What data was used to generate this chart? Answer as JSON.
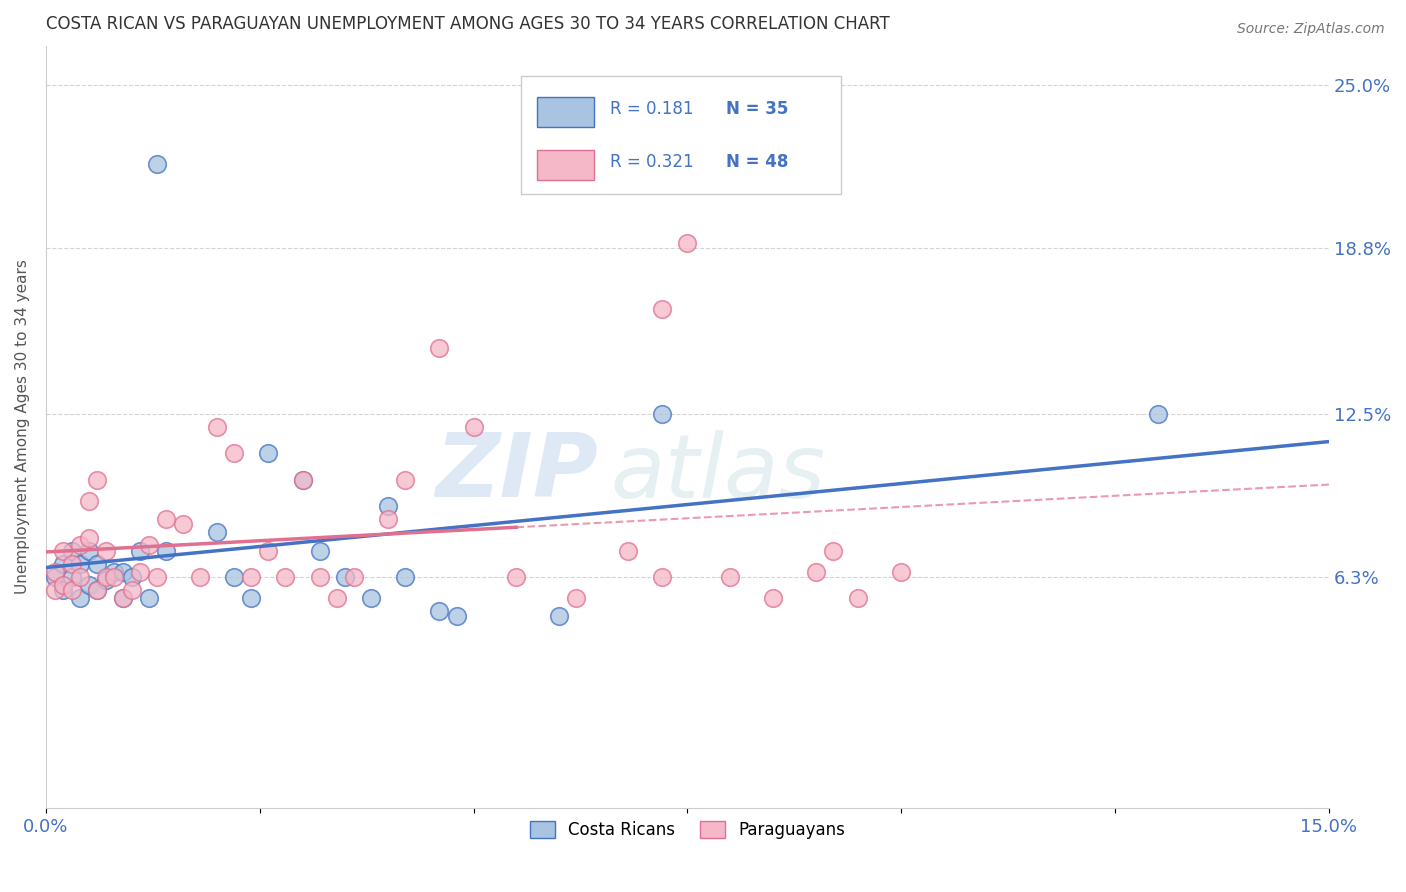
{
  "title": "COSTA RICAN VS PARAGUAYAN UNEMPLOYMENT AMONG AGES 30 TO 34 YEARS CORRELATION CHART",
  "source": "Source: ZipAtlas.com",
  "ylabel": "Unemployment Among Ages 30 to 34 years",
  "xlim": [
    0.0,
    0.15
  ],
  "ylim": [
    -0.025,
    0.265
  ],
  "ytick_positions": [
    0.063,
    0.125,
    0.188,
    0.25
  ],
  "ytick_labels": [
    "6.3%",
    "12.5%",
    "18.8%",
    "25.0%"
  ],
  "costa_rican_color": "#a8c4e0",
  "paraguayan_color": "#f4b8c8",
  "costa_rican_line_color": "#4472c4",
  "paraguayan_line_color": "#e07090",
  "costa_rican_R": 0.181,
  "costa_rican_N": 35,
  "paraguayan_R": 0.321,
  "paraguayan_N": 48,
  "watermark_zip": "ZIP",
  "watermark_atlas": "atlas",
  "cr_x": [
    0.001,
    0.002,
    0.002,
    0.003,
    0.003,
    0.004,
    0.004,
    0.005,
    0.005,
    0.006,
    0.006,
    0.007,
    0.008,
    0.009,
    0.009,
    0.01,
    0.011,
    0.012,
    0.013,
    0.014,
    0.02,
    0.022,
    0.024,
    0.026,
    0.03,
    0.032,
    0.035,
    0.038,
    0.04,
    0.042,
    0.046,
    0.048,
    0.06,
    0.072,
    0.13
  ],
  "cr_y": [
    0.063,
    0.068,
    0.058,
    0.063,
    0.073,
    0.055,
    0.068,
    0.06,
    0.073,
    0.058,
    0.068,
    0.062,
    0.065,
    0.055,
    0.065,
    0.063,
    0.073,
    0.055,
    0.22,
    0.073,
    0.08,
    0.063,
    0.055,
    0.11,
    0.1,
    0.073,
    0.063,
    0.055,
    0.09,
    0.063,
    0.05,
    0.048,
    0.048,
    0.125,
    0.125
  ],
  "py_x": [
    0.001,
    0.001,
    0.002,
    0.002,
    0.003,
    0.003,
    0.004,
    0.004,
    0.005,
    0.005,
    0.006,
    0.006,
    0.007,
    0.007,
    0.008,
    0.009,
    0.01,
    0.011,
    0.012,
    0.013,
    0.014,
    0.016,
    0.018,
    0.02,
    0.022,
    0.024,
    0.026,
    0.028,
    0.03,
    0.032,
    0.034,
    0.036,
    0.04,
    0.042,
    0.046,
    0.05,
    0.055,
    0.062,
    0.068,
    0.072,
    0.072,
    0.075,
    0.08,
    0.085,
    0.09,
    0.092,
    0.095,
    0.1
  ],
  "py_y": [
    0.058,
    0.065,
    0.06,
    0.073,
    0.058,
    0.068,
    0.075,
    0.063,
    0.078,
    0.092,
    0.058,
    0.1,
    0.073,
    0.063,
    0.063,
    0.055,
    0.058,
    0.065,
    0.075,
    0.063,
    0.085,
    0.083,
    0.063,
    0.12,
    0.11,
    0.063,
    0.073,
    0.063,
    0.1,
    0.063,
    0.055,
    0.063,
    0.085,
    0.1,
    0.15,
    0.12,
    0.063,
    0.055,
    0.073,
    0.165,
    0.063,
    0.19,
    0.063,
    0.055,
    0.065,
    0.073,
    0.055,
    0.065
  ]
}
